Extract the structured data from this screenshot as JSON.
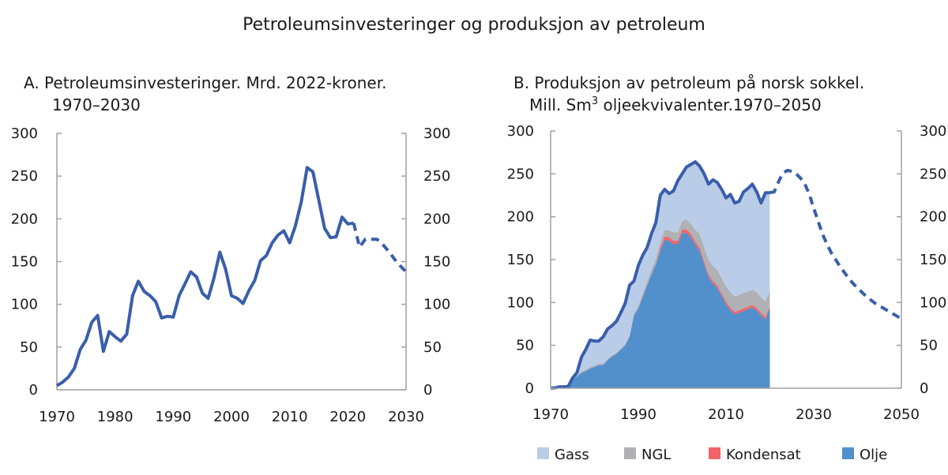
{
  "title": "Petroleumsinvesteringer og produksjon av petroleum",
  "colors": {
    "line": "#3a5eab",
    "olje": "#5290cc",
    "kondensat": "#f0646a",
    "ngl": "#b0b1b4",
    "gass": "#bacde8",
    "axis": "#a0a0a0"
  },
  "chart_data": [
    {
      "type": "line",
      "title_line1": "A.  Petroleumsinvesteringer. Mrd. 2022-kroner.",
      "title_line2": "1970–2030",
      "xlim": [
        1970,
        2030
      ],
      "ylim": [
        0,
        300
      ],
      "yticks": [
        "0",
        "50",
        "100",
        "150",
        "200",
        "250",
        "300"
      ],
      "xticks": [
        "1970",
        "1980",
        "1990",
        "2000",
        "2010",
        "2020",
        "2030"
      ],
      "grid": false,
      "series": [
        {
          "style": "solid",
          "x_start": 1970,
          "values": [
            5,
            9,
            15,
            25,
            47,
            58,
            79,
            87,
            45,
            68,
            62,
            57,
            65,
            110,
            127,
            115,
            110,
            103,
            84,
            86,
            85,
            110,
            124,
            138,
            132,
            113,
            107,
            131,
            161,
            141,
            110,
            107,
            101,
            116,
            128,
            151,
            157,
            172,
            181,
            186,
            172,
            192,
            220,
            260,
            255,
            222,
            189,
            178,
            179,
            202,
            194,
            195
          ]
        },
        {
          "style": "dashed",
          "x_start": 2021,
          "values": [
            195,
            167,
            176,
            176,
            176,
            170,
            162,
            153,
            145,
            138
          ]
        }
      ]
    },
    {
      "type": "area",
      "title_line1": "B. Produksjon av petroleum på norsk sokkel.",
      "title_line2a": "Mill. Sm",
      "title_sup": "3",
      "title_line2b": " oljeekvivalenter.1970–2050",
      "xlim": [
        1970,
        2050
      ],
      "ylim": [
        0,
        300
      ],
      "yticks": [
        "0",
        "50",
        "100",
        "150",
        "200",
        "250",
        "300"
      ],
      "xticks": [
        "1970",
        "1990",
        "2010",
        "2030",
        "2050"
      ],
      "grid": false,
      "legend": "bottom",
      "x_start": 1970,
      "stack": [
        {
          "name": "Olje",
          "color_key": "olje",
          "values": [
            0,
            0.3,
            1.6,
            1.6,
            2,
            10,
            14,
            18,
            20,
            23,
            25,
            27,
            27,
            33,
            37,
            40,
            45,
            50,
            60,
            85,
            93,
            107,
            120,
            133,
            145,
            160,
            173,
            172,
            168,
            168,
            181,
            181,
            176,
            167,
            160,
            145,
            130,
            122,
            117,
            108,
            98,
            91,
            86,
            88,
            90,
            92,
            94,
            91,
            85,
            80,
            94
          ]
        },
        {
          "name": "Kondensat",
          "color_key": "kondensat",
          "values": [
            0,
            0,
            0,
            0,
            0,
            0,
            0,
            0,
            0,
            0,
            0,
            0,
            0,
            0,
            0,
            0,
            0,
            0,
            0,
            0,
            0.5,
            0.5,
            0.5,
            0.5,
            0.5,
            3,
            4,
            4,
            4,
            4,
            4,
            4,
            4,
            4,
            4,
            3,
            3,
            3,
            3,
            3,
            3,
            3,
            3,
            3,
            3,
            3,
            3,
            3,
            3,
            3,
            2
          ]
        },
        {
          "name": "NGL",
          "color_key": "ngl",
          "values": [
            0,
            0,
            0,
            0,
            0,
            0,
            0,
            1.5,
            1.5,
            1.5,
            1.5,
            1.5,
            1.5,
            1.5,
            1.5,
            1.5,
            1.5,
            1.5,
            1.5,
            2,
            3,
            3,
            4,
            5,
            6,
            7,
            8,
            8,
            10,
            10,
            10,
            12,
            12,
            14,
            16,
            17,
            17,
            18,
            18,
            18,
            18,
            18,
            18,
            18,
            18,
            18,
            18,
            18,
            18,
            18,
            18
          ]
        },
        {
          "name": "Gass",
          "color_key": "gass",
          "values": [
            0,
            0.2,
            0,
            0,
            0,
            2,
            4,
            16.5,
            23.5,
            31.5,
            28.5,
            26.5,
            31.5,
            34.5,
            34.5,
            36.5,
            41.5,
            47.5,
            58.5,
            38,
            46.5,
            44.5,
            39.5,
            41.5,
            41.5,
            55,
            47,
            43,
            48,
            60,
            55,
            61,
            69,
            79,
            79,
            85,
            88,
            100,
            102,
            103,
            103,
            114,
            109,
            109,
            118,
            120,
            123,
            117,
            110,
            127,
            114
          ]
        }
      ],
      "total_line": {
        "style": "solid",
        "x_start": 1970,
        "values": [
          0,
          0.5,
          1.6,
          1.6,
          2,
          12,
          18,
          36,
          45,
          56,
          55,
          55,
          60,
          69,
          73,
          78,
          88,
          99,
          120,
          125,
          143,
          155,
          164,
          180,
          193,
          225,
          232,
          227,
          230,
          242,
          250,
          258,
          261,
          264,
          259,
          250,
          238,
          243,
          240,
          232,
          222,
          226,
          216,
          218,
          229,
          233,
          238,
          229,
          216,
          228,
          228
        ]
      },
      "forecast_line": {
        "style": "dashed",
        "x_start": 2020,
        "values": [
          228,
          229,
          241,
          251,
          254,
          253,
          250,
          245,
          238,
          226,
          210,
          195,
          180,
          168,
          158,
          150,
          142,
          135,
          128,
          122,
          117,
          112,
          107,
          103,
          99,
          96,
          93,
          90,
          87,
          84,
          81
        ]
      },
      "legend_order": [
        "Gass",
        "NGL",
        "Kondensat",
        "Olje"
      ]
    }
  ]
}
